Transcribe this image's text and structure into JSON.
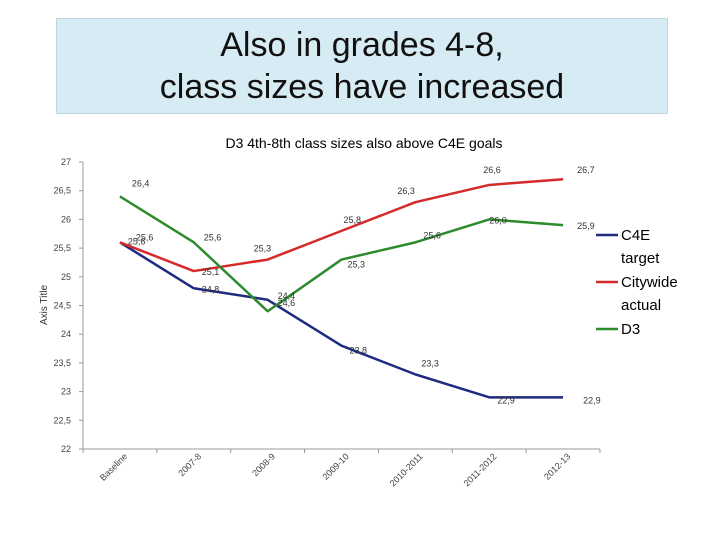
{
  "slide": {
    "title_line1": "Also in grades 4-8,",
    "title_line2": "class sizes have increased"
  },
  "chart_data": {
    "type": "line",
    "title": "D3 4th-8th class sizes also above C4E goals",
    "xlabel": "",
    "ylabel": "Axis Title",
    "categories": [
      "Baseline",
      "2007-8",
      "2008-9",
      "2009-10",
      "2010-2011",
      "2011-2012",
      "2012-13"
    ],
    "ylim": [
      22,
      27
    ],
    "yticks": [
      "22",
      "22,5",
      "23",
      "23,5",
      "24",
      "24,5",
      "25",
      "25,5",
      "26",
      "26,5",
      "27"
    ],
    "grid": false,
    "legend": "right",
    "series": [
      {
        "name": "C4E target",
        "color": "#1f2a80",
        "values": [
          25.6,
          24.8,
          24.6,
          23.8,
          23.3,
          22.9,
          22.9
        ],
        "labels": [
          "25,6",
          "24,8",
          "24,6",
          "23,8",
          "23,3",
          "22,9",
          "22,9"
        ]
      },
      {
        "name": "Citywide actual",
        "color": "#d42a2a",
        "values": [
          25.6,
          25.1,
          25.3,
          25.8,
          26.3,
          26.6,
          26.7
        ],
        "labels": [
          "25,6",
          "25,1",
          "25,3",
          "25,8",
          "26,3",
          "26,6",
          "26,7"
        ]
      },
      {
        "name": "D3",
        "color": "#2d8a2d",
        "values": [
          26.4,
          25.6,
          24.4,
          25.3,
          25.6,
          26.0,
          25.9
        ],
        "labels": [
          "26,4",
          "25,6",
          "24,4",
          "25,3",
          "25,6",
          "26,0",
          "25,9"
        ]
      }
    ]
  }
}
